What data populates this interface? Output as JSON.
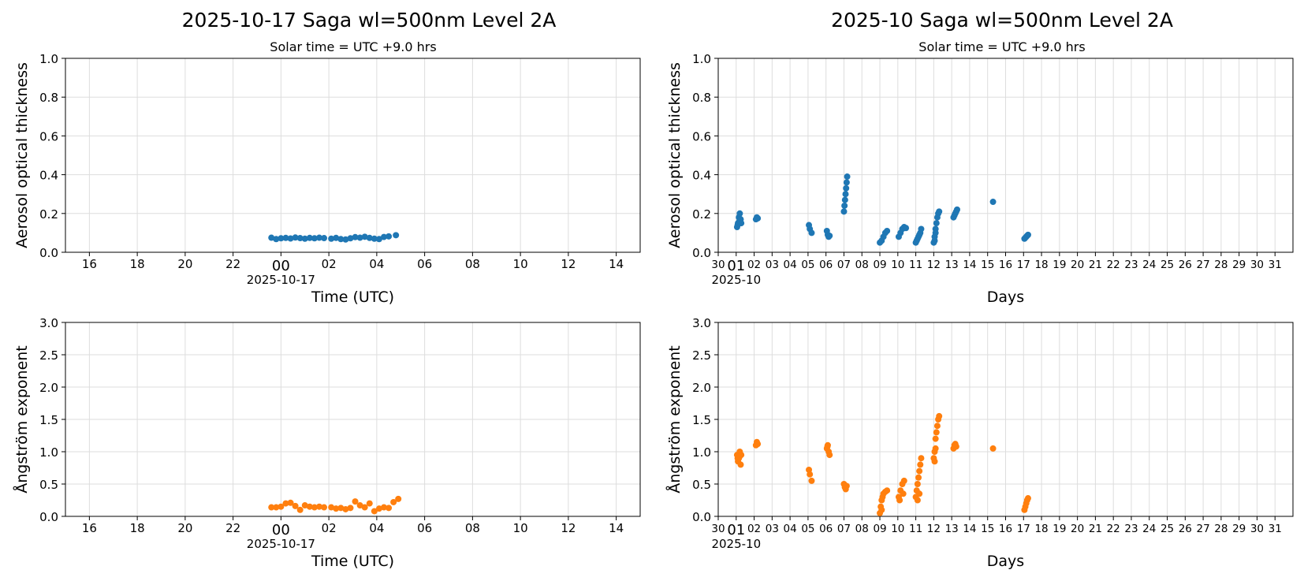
{
  "figure": {
    "left_title": "2025-10-17  Saga  wl=500nm  Level 2A",
    "right_title": "2025-10  Saga  wl=500nm  Level 2A",
    "left_subtitle": "Solar time = UTC +9.0 hrs",
    "right_subtitle": "Solar time = UTC +9.0 hrs"
  },
  "colors": {
    "aot": "#1f77b4",
    "angstrom": "#ff7f0e",
    "grid": "#dddddd"
  },
  "chart_data": [
    {
      "id": "daily-aot",
      "type": "scatter",
      "ylabel": "Aerosol optical thickness",
      "xlabel": "Time (UTC)",
      "ylim": [
        0,
        1.0
      ],
      "yticks": [
        "0.0",
        "0.2",
        "0.4",
        "0.6",
        "0.8",
        "1.0"
      ],
      "xlim_hours": [
        -9,
        15
      ],
      "xticks": [
        "16",
        "18",
        "20",
        "22",
        "00",
        "02",
        "04",
        "06",
        "08",
        "10",
        "12",
        "14"
      ],
      "xtick_hours": [
        -8,
        -6,
        -4,
        -2,
        0,
        2,
        4,
        6,
        8,
        10,
        12,
        14
      ],
      "x_date_label": "2025-10-17",
      "grid": true,
      "series": [
        {
          "x_hours": [
            -0.4,
            -0.2,
            0.0,
            0.2,
            0.4,
            0.6,
            0.8,
            1.0,
            1.2,
            1.4,
            1.6,
            1.8,
            2.1,
            2.3,
            2.5,
            2.7,
            2.9,
            3.1,
            3.3,
            3.5,
            3.7,
            3.9,
            4.1,
            4.3,
            4.5,
            4.8
          ],
          "values": [
            0.075,
            0.068,
            0.072,
            0.074,
            0.071,
            0.076,
            0.073,
            0.07,
            0.074,
            0.072,
            0.075,
            0.073,
            0.07,
            0.074,
            0.068,
            0.066,
            0.072,
            0.078,
            0.075,
            0.08,
            0.074,
            0.07,
            0.068,
            0.079,
            0.082,
            0.088
          ]
        }
      ]
    },
    {
      "id": "monthly-aot",
      "type": "scatter",
      "ylabel": "Aerosol optical thickness",
      "xlabel": "Days",
      "ylim": [
        0,
        1.0
      ],
      "yticks": [
        "0.0",
        "0.2",
        "0.4",
        "0.6",
        "0.8",
        "1.0"
      ],
      "xlim_days": [
        0,
        32
      ],
      "xticks": [
        "30",
        "01",
        "02",
        "03",
        "04",
        "05",
        "06",
        "07",
        "08",
        "09",
        "10",
        "11",
        "12",
        "13",
        "14",
        "15",
        "16",
        "17",
        "18",
        "19",
        "20",
        "21",
        "22",
        "23",
        "24",
        "25",
        "26",
        "27",
        "28",
        "29",
        "30",
        "31"
      ],
      "x_date_label": "2025-10",
      "grid": true,
      "series": [
        {
          "days": [
            1.05,
            1.1,
            1.15,
            1.2,
            1.25,
            1.08,
            1.18,
            1.28,
            2.1,
            2.15,
            2.2,
            5.05,
            5.1,
            5.2,
            6.05,
            6.1,
            6.15,
            6.2,
            7.0,
            7.03,
            7.06,
            7.09,
            7.12,
            7.15,
            7.18,
            9.0,
            9.1,
            9.2,
            9.3,
            9.4,
            10.05,
            10.15,
            10.25,
            10.35,
            10.45,
            11.0,
            11.05,
            11.1,
            11.15,
            11.2,
            11.25,
            11.3,
            12.0,
            12.05,
            12.1,
            12.15,
            12.2,
            12.25,
            12.3,
            12.05,
            12.1,
            13.1,
            13.15,
            13.2,
            13.25,
            13.3,
            15.3,
            17.05,
            17.1,
            17.15,
            17.2,
            17.25
          ],
          "values": [
            0.13,
            0.15,
            0.18,
            0.2,
            0.17,
            0.14,
            0.16,
            0.15,
            0.17,
            0.18,
            0.175,
            0.14,
            0.12,
            0.1,
            0.11,
            0.09,
            0.08,
            0.085,
            0.21,
            0.24,
            0.27,
            0.3,
            0.33,
            0.36,
            0.39,
            0.05,
            0.06,
            0.08,
            0.1,
            0.11,
            0.08,
            0.1,
            0.12,
            0.13,
            0.125,
            0.05,
            0.06,
            0.07,
            0.08,
            0.09,
            0.1,
            0.12,
            0.05,
            0.08,
            0.12,
            0.15,
            0.18,
            0.2,
            0.21,
            0.06,
            0.1,
            0.18,
            0.19,
            0.2,
            0.21,
            0.22,
            0.26,
            0.07,
            0.075,
            0.08,
            0.085,
            0.09
          ]
        }
      ]
    },
    {
      "id": "daily-angstrom",
      "type": "scatter",
      "ylabel": "Ångström exponent",
      "xlabel": "Time (UTC)",
      "ylim": [
        0,
        3.0
      ],
      "yticks": [
        "0.0",
        "0.5",
        "1.0",
        "1.5",
        "2.0",
        "2.5",
        "3.0"
      ],
      "xlim_hours": [
        -9,
        15
      ],
      "xticks": [
        "16",
        "18",
        "20",
        "22",
        "00",
        "02",
        "04",
        "06",
        "08",
        "10",
        "12",
        "14"
      ],
      "xtick_hours": [
        -8,
        -6,
        -4,
        -2,
        0,
        2,
        4,
        6,
        8,
        10,
        12,
        14
      ],
      "x_date_label": "2025-10-17",
      "grid": true,
      "series": [
        {
          "x_hours": [
            -0.4,
            -0.2,
            0.0,
            0.2,
            0.4,
            0.6,
            0.8,
            1.0,
            1.2,
            1.4,
            1.6,
            1.8,
            2.1,
            2.3,
            2.5,
            2.7,
            2.9,
            3.1,
            3.3,
            3.5,
            3.7,
            3.9,
            4.1,
            4.3,
            4.5,
            4.7,
            4.9
          ],
          "values": [
            0.14,
            0.14,
            0.15,
            0.2,
            0.21,
            0.16,
            0.1,
            0.17,
            0.15,
            0.14,
            0.15,
            0.14,
            0.14,
            0.12,
            0.13,
            0.11,
            0.13,
            0.23,
            0.17,
            0.14,
            0.2,
            0.08,
            0.12,
            0.14,
            0.13,
            0.22,
            0.27
          ]
        }
      ]
    },
    {
      "id": "monthly-angstrom",
      "type": "scatter",
      "ylabel": "Ångström exponent",
      "xlabel": "Days",
      "ylim": [
        0,
        3.0
      ],
      "yticks": [
        "0.0",
        "0.5",
        "1.0",
        "1.5",
        "2.0",
        "2.5",
        "3.0"
      ],
      "xlim_days": [
        0,
        32
      ],
      "xticks": [
        "30",
        "01",
        "02",
        "03",
        "04",
        "05",
        "06",
        "07",
        "08",
        "09",
        "10",
        "11",
        "12",
        "13",
        "14",
        "15",
        "16",
        "17",
        "18",
        "19",
        "20",
        "21",
        "22",
        "23",
        "24",
        "25",
        "26",
        "27",
        "28",
        "29",
        "30",
        "31"
      ],
      "x_date_label": "2025-10",
      "grid": true,
      "series": [
        {
          "days": [
            1.05,
            1.1,
            1.15,
            1.2,
            1.25,
            1.08,
            1.18,
            1.28,
            2.1,
            2.15,
            2.2,
            5.05,
            5.1,
            5.2,
            6.05,
            6.1,
            6.15,
            6.2,
            6.08,
            7.0,
            7.05,
            7.1,
            7.15,
            9.0,
            9.05,
            9.1,
            9.15,
            9.2,
            9.3,
            9.4,
            9.1,
            10.05,
            10.15,
            10.25,
            10.35,
            10.1,
            10.3,
            11.0,
            11.05,
            11.1,
            11.15,
            11.2,
            11.25,
            11.3,
            11.1,
            11.2,
            12.0,
            12.05,
            12.1,
            12.15,
            12.2,
            12.25,
            12.3,
            12.05,
            12.1,
            13.1,
            13.15,
            13.2,
            13.25,
            15.3,
            17.05,
            17.1,
            17.15,
            17.2,
            17.25
          ],
          "values": [
            0.95,
            0.85,
            0.9,
            1.0,
            0.8,
            0.9,
            0.92,
            0.95,
            1.1,
            1.15,
            1.12,
            0.72,
            0.65,
            0.55,
            1.05,
            1.1,
            1.0,
            0.95,
            1.08,
            0.5,
            0.45,
            0.42,
            0.47,
            0.05,
            0.15,
            0.25,
            0.3,
            0.35,
            0.38,
            0.4,
            0.1,
            0.3,
            0.4,
            0.5,
            0.55,
            0.25,
            0.35,
            0.3,
            0.4,
            0.5,
            0.6,
            0.7,
            0.8,
            0.9,
            0.25,
            0.35,
            0.9,
            1.0,
            1.2,
            1.3,
            1.4,
            1.5,
            1.55,
            0.85,
            1.05,
            1.05,
            1.1,
            1.12,
            1.08,
            1.05,
            0.1,
            0.15,
            0.2,
            0.25,
            0.28
          ]
        }
      ]
    }
  ]
}
